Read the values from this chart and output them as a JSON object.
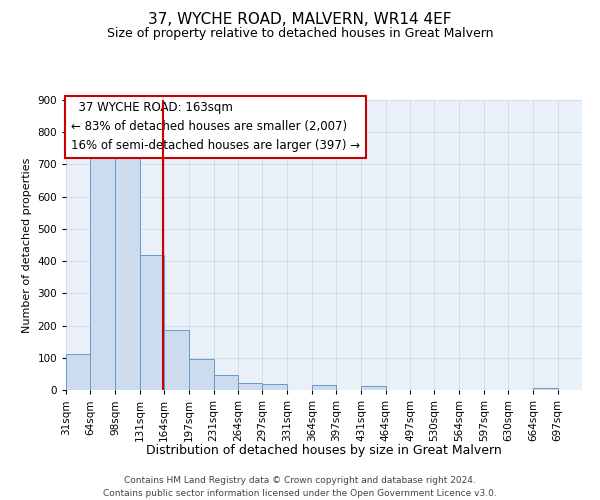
{
  "title": "37, WYCHE ROAD, MALVERN, WR14 4EF",
  "subtitle": "Size of property relative to detached houses in Great Malvern",
  "xlabel": "Distribution of detached houses by size in Great Malvern",
  "ylabel": "Number of detached properties",
  "footer_line1": "Contains HM Land Registry data © Crown copyright and database right 2024.",
  "footer_line2": "Contains public sector information licensed under the Open Government Licence v3.0.",
  "bins": [
    31,
    64,
    98,
    131,
    164,
    197,
    231,
    264,
    297,
    331,
    364,
    397,
    431,
    464,
    497,
    530,
    564,
    597,
    630,
    664,
    697
  ],
  "counts": [
    112,
    748,
    750,
    420,
    185,
    95,
    46,
    22,
    18,
    0,
    15,
    0,
    13,
    0,
    0,
    0,
    0,
    0,
    0,
    5
  ],
  "bar_color": "#ccdcee",
  "bar_edge_color": "#6699cc",
  "property_size": 163,
  "property_label": "37 WYCHE ROAD: 163sqm",
  "annotation_line1": "← 83% of detached houses are smaller (2,007)",
  "annotation_line2": "16% of semi-detached houses are larger (397) →",
  "vline_color": "#cc0000",
  "annotation_box_edge": "#cc0000",
  "ylim": [
    0,
    900
  ],
  "yticks": [
    0,
    100,
    200,
    300,
    400,
    500,
    600,
    700,
    800,
    900
  ],
  "title_fontsize": 11,
  "subtitle_fontsize": 9,
  "xlabel_fontsize": 9,
  "ylabel_fontsize": 8,
  "tick_fontsize": 7.5,
  "annotation_fontsize": 8.5,
  "footer_fontsize": 6.5
}
